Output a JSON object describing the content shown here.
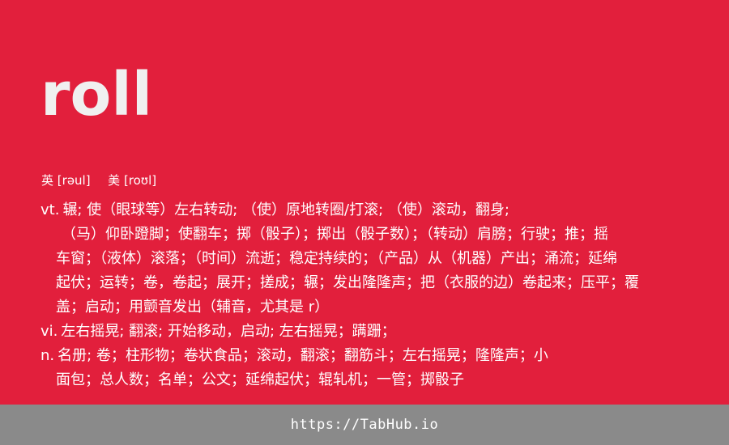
{
  "colors": {
    "background": "#E21F3C",
    "headword": "#F0F0F0",
    "text": "#FFFFFF",
    "footer_background": "#8A8A8A"
  },
  "headword": "roll",
  "phonetics": {
    "uk_label": "英",
    "uk_ipa": "[rəul]",
    "us_label": "美",
    "us_ipa": "[roʊl]"
  },
  "definitions": {
    "vt": {
      "pos": "vt.",
      "lines": [
        "辗; 使（眼球等）左右转动; （使）原地转圈/打滚; （使）滚动，翻身;",
        "（马）仰卧蹬脚；使翻车；掷（骰子）；掷出（骰子数）；（转动）肩膀；行驶；推；摇",
        "车窗；（液体）滚落；（时间）流逝；稳定持续的；（产品）从（机器）产出；涌流；延绵",
        "起伏；运转；卷，卷起；展开；搓成；辗；发出隆隆声；把（衣服的边）卷起来；压平；覆",
        "盖；启动；用颤音发出（辅音，尤其是 r）"
      ]
    },
    "vi": {
      "pos": "vi.",
      "lines": [
        "左右摇晃; 翻滚; 开始移动，启动; 左右摇晃；蹒跚；"
      ]
    },
    "n": {
      "pos": "n.",
      "lines": [
        "名册;   卷；柱形物；卷状食品；滚动，翻滚；翻筋斗；左右摇晃；隆隆声；小",
        "面包；总人数；名单；公文；延绵起伏；辊轧机；一管；掷骰子"
      ]
    }
  },
  "footer": {
    "link_text": "https://TabHub.io"
  }
}
